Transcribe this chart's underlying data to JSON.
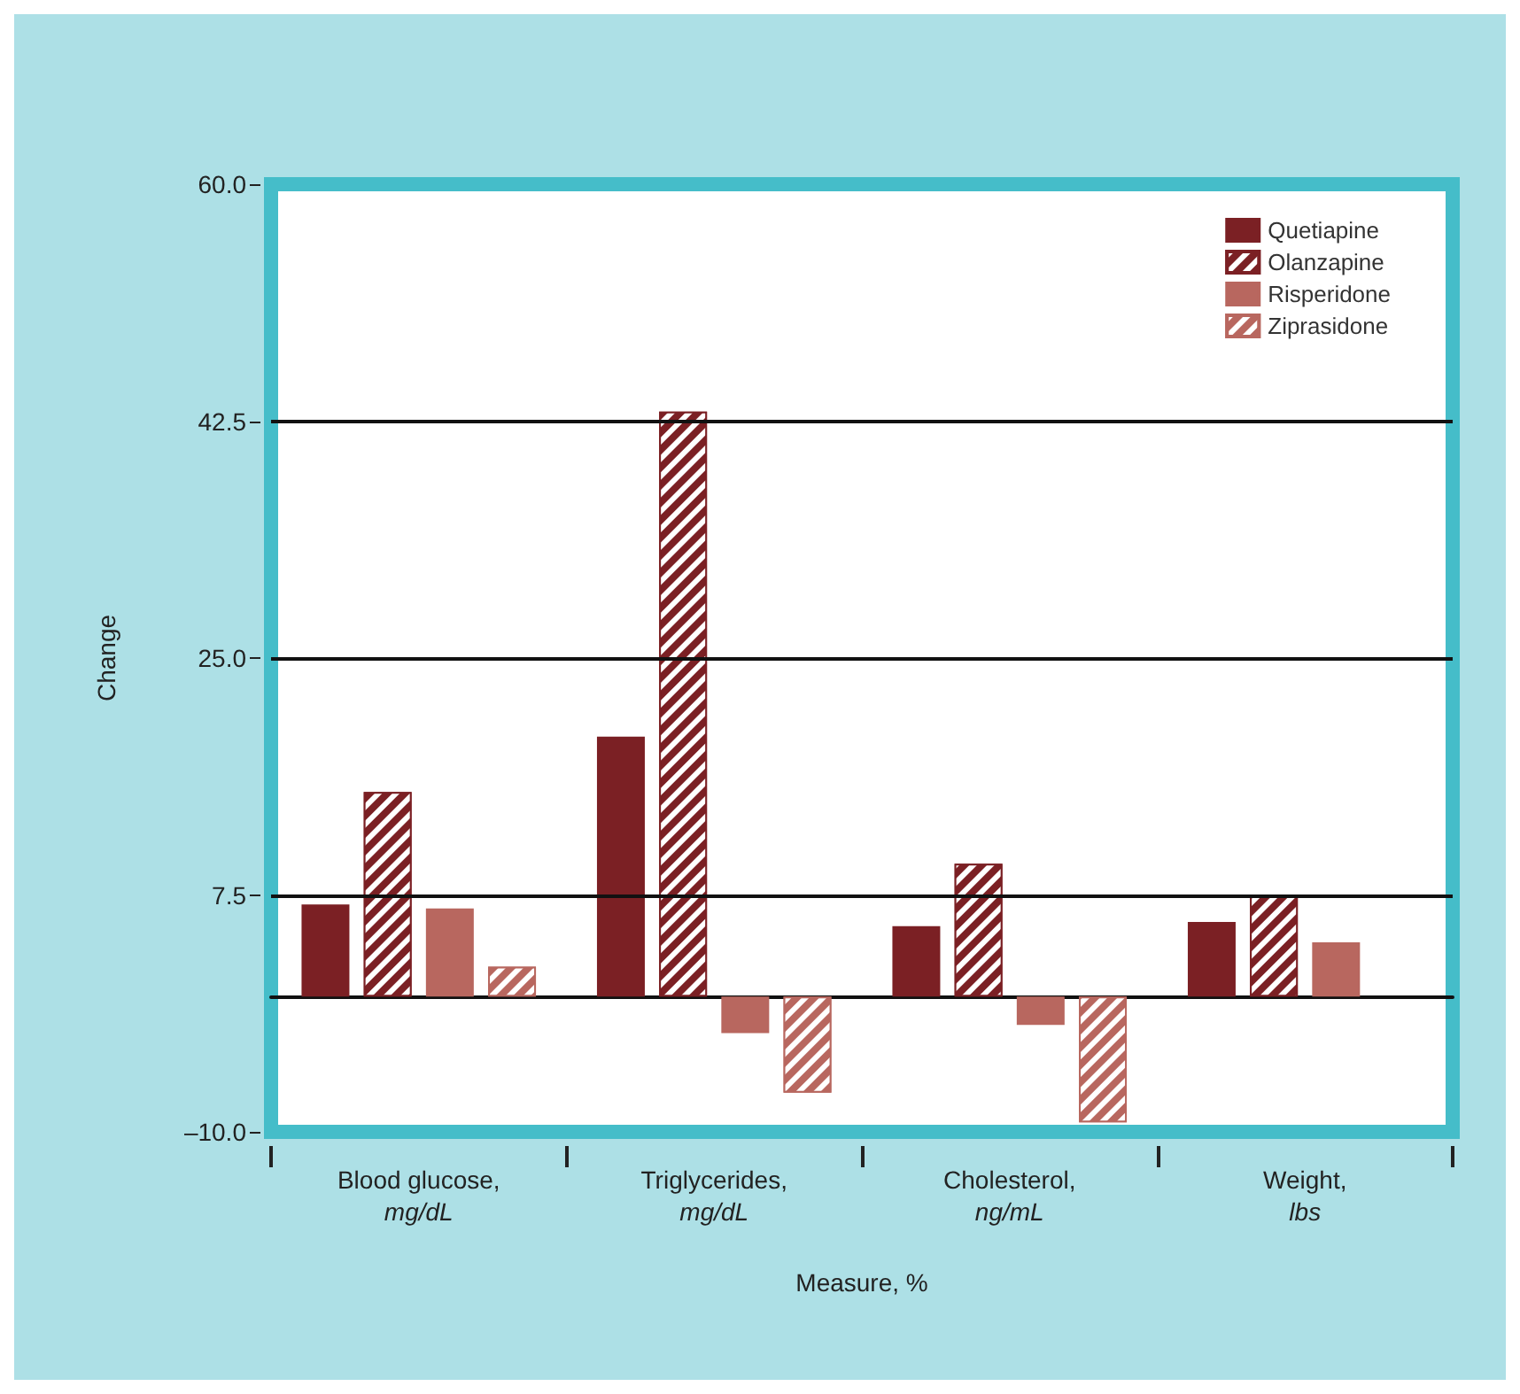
{
  "chart_data": {
    "type": "bar",
    "xlabel": "Measure, %",
    "ylabel": "Change",
    "categories": [
      "Blood glucose, mg/dL",
      "Triglycerides, mg/dL",
      "Cholesterol, ng/mL",
      "Weight, lbs"
    ],
    "series": [
      {
        "name": "Quetiapine",
        "color": "#7b2024",
        "values": [
          6.8,
          19.2,
          5.2,
          5.5
        ]
      },
      {
        "name": "Olanzapine",
        "color": "#7b2024",
        "values": [
          15.1,
          43.2,
          9.8,
          7.5
        ]
      },
      {
        "name": "Risperidone",
        "color": "#b8675f",
        "values": [
          6.5,
          -2.7,
          -2.1,
          4.0
        ]
      },
      {
        "name": "Ziprasidone",
        "color": "#b8675f",
        "values": [
          2.2,
          -7.1,
          -9.3,
          null
        ]
      }
    ],
    "ylim": [
      -10,
      60
    ],
    "yticks": [
      {
        "value": -10,
        "label": "–10.0"
      },
      {
        "value": 7.5,
        "label": "7.5"
      },
      {
        "value": 25,
        "label": "25.0"
      },
      {
        "value": 42.5,
        "label": "42.5"
      },
      {
        "value": 60,
        "label": "60.0"
      }
    ],
    "grid": "y",
    "legend": "top right"
  }
}
